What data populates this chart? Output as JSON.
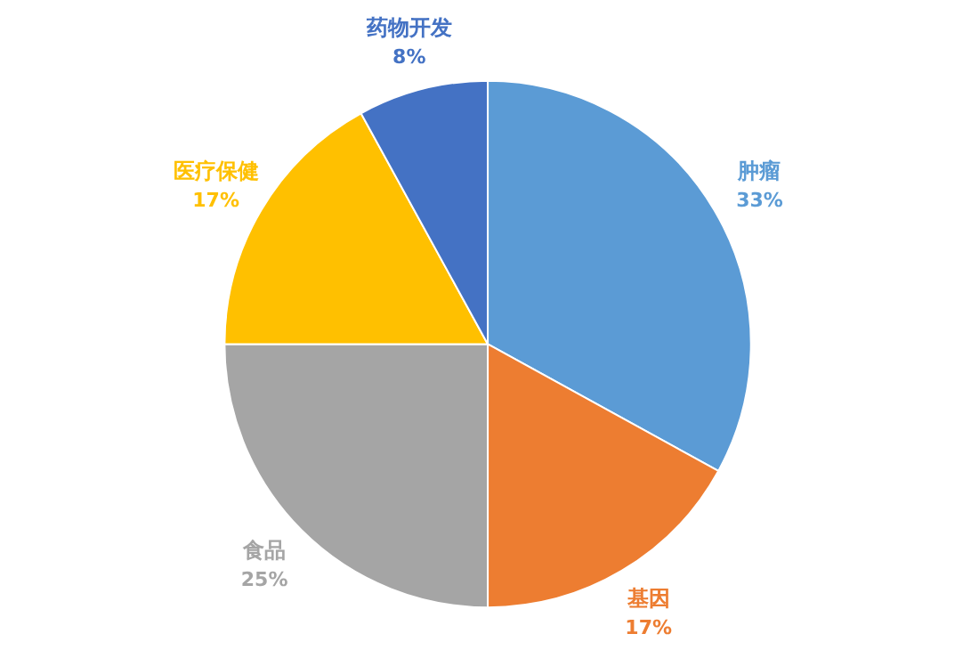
{
  "chart_data": {
    "type": "pie",
    "categories": [
      "肿瘤",
      "基因",
      "食品",
      "医疗保健",
      "药物开发"
    ],
    "values": [
      33,
      17,
      25,
      17,
      8
    ],
    "colors": [
      "#5b9bd5",
      "#ed7d31",
      "#a5a5a5",
      "#ffc000",
      "#4472c4"
    ],
    "value_labels": [
      "33%",
      "17%",
      "25%",
      "17%",
      "8%"
    ]
  }
}
